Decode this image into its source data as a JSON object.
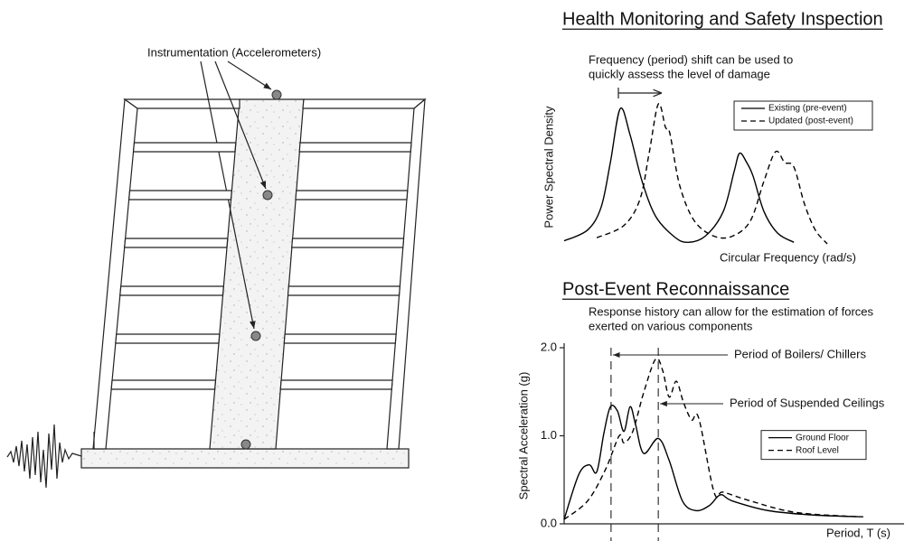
{
  "diagram": {
    "label": "Instrumentation (Accelerometers)"
  },
  "chart_data": [
    {
      "type": "line",
      "title": "Health Monitoring and Safety Inspection",
      "annotation": [
        "Frequency (period) shift can be used to",
        "quickly assess the level of damage"
      ],
      "xlabel": "Circular Frequency (rad/s)",
      "ylabel": "Power Spectral Density",
      "xlim": [
        0,
        10
      ],
      "ylim": [
        0,
        1
      ],
      "legend": "upper right",
      "series": [
        {
          "name": "Existing (pre-event)",
          "color": "#000000",
          "dash": "solid",
          "x": [
            0,
            0.69,
            1.09,
            1.36,
            1.65,
            1.94,
            2.29,
            2.69,
            3.22,
            3.62,
            4.15,
            4.68,
            5.0,
            5.16,
            5.37,
            5.56,
            5.88,
            6.28,
            6.76
          ],
          "values": [
            0.02,
            0.09,
            0.24,
            0.53,
            0.88,
            0.71,
            0.41,
            0.18,
            0.05,
            0.01,
            0.05,
            0.21,
            0.47,
            0.59,
            0.53,
            0.44,
            0.21,
            0.07,
            0.01
          ]
        },
        {
          "name": "Updated (post-event)",
          "color": "#000000",
          "dash": "dashed",
          "x": [
            0.96,
            1.76,
            2.23,
            2.5,
            2.77,
            2.98,
            3.11,
            3.4,
            3.83,
            4.41,
            4.95,
            5.48,
            5.88,
            6.22,
            6.49,
            6.76,
            7.07,
            7.39,
            7.74
          ],
          "values": [
            0.04,
            0.12,
            0.29,
            0.59,
            0.91,
            0.76,
            0.72,
            0.38,
            0.15,
            0.05,
            0.05,
            0.15,
            0.41,
            0.6,
            0.53,
            0.5,
            0.26,
            0.09,
            0
          ]
        }
      ]
    },
    {
      "type": "line",
      "title": "Post-Event Reconnaissance",
      "annotation": [
        "Response history can allow for the estimation of forces",
        "exerted on various components"
      ],
      "xlabel": "Period, T (s)",
      "ylabel": "Spectral Acceleration (g)",
      "xlim": [
        0,
        10
      ],
      "ylim": [
        0,
        2
      ],
      "yticks": [
        {
          "value": 0,
          "label": "0.0"
        },
        {
          "value": 1,
          "label": "1.0"
        },
        {
          "value": 2,
          "label": "2.0"
        }
      ],
      "legend": "center right",
      "markers": [
        {
          "x": 1.38,
          "label": "Period of Boilers/ Chillers"
        },
        {
          "x": 2.77,
          "label": "Period of Suspended Ceilings"
        }
      ],
      "series": [
        {
          "name": "Ground Floor",
          "color": "#000000",
          "dash": "solid",
          "x": [
            0,
            0.43,
            0.74,
            0.96,
            1.17,
            1.36,
            1.57,
            1.76,
            1.94,
            2.1,
            2.34,
            2.77,
            3.09,
            3.48,
            3.88,
            4.28,
            4.6,
            4.95,
            6.01,
            7.34,
            8.8
          ],
          "values": [
            0.05,
            0.56,
            0.67,
            0.59,
            1.03,
            1.33,
            1.28,
            1.05,
            1.33,
            1.13,
            0.8,
            0.97,
            0.72,
            0.26,
            0.15,
            0.21,
            0.33,
            0.26,
            0.15,
            0.1,
            0.08
          ]
        },
        {
          "name": "Roof Level",
          "color": "#000000",
          "dash": "dashed",
          "x": [
            0,
            0.69,
            1.22,
            1.62,
            1.76,
            2.02,
            2.34,
            2.69,
            2.9,
            3.09,
            3.3,
            3.51,
            3.75,
            3.96,
            4.41,
            4.68,
            5.48,
            6.81,
            8.67
          ],
          "values": [
            0.05,
            0.26,
            0.62,
            1.0,
            0.92,
            1.05,
            1.49,
            1.87,
            1.74,
            1.44,
            1.62,
            1.38,
            1.18,
            1.2,
            0.36,
            0.36,
            0.26,
            0.13,
            0.08
          ]
        }
      ]
    }
  ]
}
